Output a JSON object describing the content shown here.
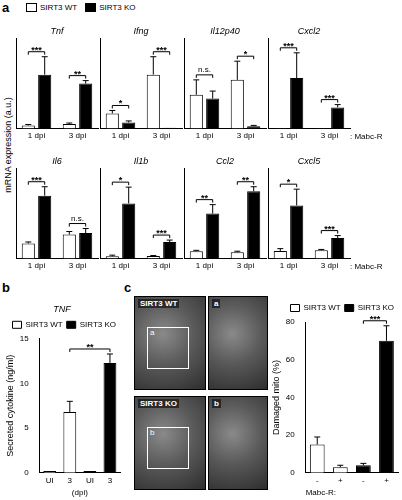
{
  "figure": {
    "panels": [
      "a",
      "b",
      "c"
    ],
    "ylabel": "mRNA expression (a.u.)",
    "images": [
      {
        "label": "SIRT3 WT",
        "inset": "a"
      },
      {
        "label": "SIRT3 KO",
        "inset": "b"
      }
    ]
  },
  "chart_data": [
    {
      "type": "bar",
      "title": "Tnf",
      "categories": [
        "1 dpi",
        "3 dpi"
      ],
      "ylim": [
        0,
        30
      ],
      "tick_labels": "x",
      "grid": false,
      "legend": "top-left",
      "series": [
        {
          "name": "SIRT3 WT",
          "color": "#ffffff",
          "values": [
            1,
            1.5
          ],
          "errors": [
            0.3,
            0.3
          ]
        },
        {
          "name": "SIRT3 KO",
          "color": "#000000",
          "values": [
            18,
            15
          ],
          "errors": [
            6,
            1
          ]
        }
      ],
      "significance": [
        {
          "from": [
            0,
            0
          ],
          "to": [
            1,
            0
          ],
          "label": "***"
        },
        {
          "from": [
            0,
            1
          ],
          "to": [
            1,
            1
          ],
          "label": "**"
        }
      ]
    },
    {
      "type": "bar",
      "title": "Ifng",
      "categories": [
        "1 dpi",
        "3 dpi"
      ],
      "ylim": [
        0,
        3
      ],
      "tick_labels": "x",
      "grid": false,
      "series": [
        {
          "name": "SIRT3 WT",
          "color": "#ffffff",
          "values": [
            0.5,
            1.8
          ],
          "errors": [
            0.1,
            0.6
          ]
        },
        {
          "name": "SIRT3 KO",
          "color": "#000000",
          "values": [
            0.2,
            0.02
          ],
          "errors": [
            0.05,
            null
          ]
        }
      ],
      "significance": [
        {
          "from": [
            0,
            0
          ],
          "to": [
            1,
            0
          ],
          "label": "*"
        },
        {
          "from": [
            0,
            1
          ],
          "to": [
            1,
            1
          ],
          "label": "***"
        }
      ]
    },
    {
      "type": "bar",
      "title": "Il12p40",
      "categories": [
        "1 dpi",
        "3 dpi"
      ],
      "ylim": [
        0,
        12
      ],
      "tick_labels": "x",
      "grid": false,
      "series": [
        {
          "name": "SIRT3 WT",
          "color": "#ffffff",
          "values": [
            4.5,
            6.5
          ],
          "errors": [
            2,
            2.5
          ]
        },
        {
          "name": "SIRT3 KO",
          "color": "#000000",
          "values": [
            4,
            0.3
          ],
          "errors": [
            1,
            0.1
          ]
        }
      ],
      "significance": [
        {
          "from": [
            0,
            0
          ],
          "to": [
            1,
            0
          ],
          "label": "n.s."
        },
        {
          "from": [
            0,
            1
          ],
          "to": [
            1,
            1
          ],
          "label": "*"
        }
      ]
    },
    {
      "type": "bar",
      "title": "Cxcl2",
      "categories": [
        "1 dpi",
        "3 dpi"
      ],
      "ylim": [
        0,
        3200
      ],
      "tick_labels": "x",
      "grid": false,
      "annotations": [
        ": Mabc-R"
      ],
      "series": [
        {
          "name": "SIRT3 WT",
          "color": "#ffffff",
          "values": [
            5,
            5
          ],
          "errors": [
            null,
            null
          ]
        },
        {
          "name": "SIRT3 KO",
          "color": "#000000",
          "values": [
            1800,
            750
          ],
          "errors": [
            900,
            100
          ]
        }
      ],
      "significance": [
        {
          "from": [
            0,
            0
          ],
          "to": [
            1,
            0
          ],
          "label": "***"
        },
        {
          "from": [
            0,
            1
          ],
          "to": [
            1,
            1
          ],
          "label": "***"
        }
      ]
    },
    {
      "type": "bar",
      "title": "Il6",
      "categories": [
        "1 dpi",
        "3 dpi"
      ],
      "ylim": [
        0,
        6
      ],
      "tick_labels": "x",
      "grid": false,
      "series": [
        {
          "name": "SIRT3 WT",
          "color": "#ffffff",
          "values": [
            1,
            1.6
          ],
          "errors": [
            0.1,
            0.2
          ]
        },
        {
          "name": "SIRT3 KO",
          "color": "#000000",
          "values": [
            4.2,
            1.7
          ],
          "errors": [
            0.6,
            0.3
          ]
        }
      ],
      "significance": [
        {
          "from": [
            0,
            0
          ],
          "to": [
            1,
            0
          ],
          "label": "***"
        },
        {
          "from": [
            0,
            1
          ],
          "to": [
            1,
            1
          ],
          "label": "n.s."
        }
      ]
    },
    {
      "type": "bar",
      "title": "Il1b",
      "categories": [
        "1 dpi",
        "3 dpi"
      ],
      "ylim": [
        0,
        22
      ],
      "tick_labels": "x",
      "grid": false,
      "series": [
        {
          "name": "SIRT3 WT",
          "color": "#ffffff",
          "values": [
            0.5,
            0.6
          ],
          "errors": [
            0.3,
            0.1
          ]
        },
        {
          "name": "SIRT3 KO",
          "color": "#000000",
          "values": [
            13.5,
            4
          ],
          "errors": [
            4,
            0.5
          ]
        }
      ],
      "significance": [
        {
          "from": [
            0,
            0
          ],
          "to": [
            1,
            0
          ],
          "label": "*"
        },
        {
          "from": [
            0,
            1
          ],
          "to": [
            1,
            1
          ],
          "label": "***"
        }
      ]
    },
    {
      "type": "bar",
      "title": "Ccl2",
      "categories": [
        "1 dpi",
        "3 dpi"
      ],
      "ylim": [
        0,
        10
      ],
      "tick_labels": "x",
      "grid": false,
      "series": [
        {
          "name": "SIRT3 WT",
          "color": "#ffffff",
          "values": [
            0.8,
            0.7
          ],
          "errors": [
            0.1,
            0.1
          ]
        },
        {
          "name": "SIRT3 KO",
          "color": "#000000",
          "values": [
            5,
            7.5
          ],
          "errors": [
            1,
            0.5
          ]
        }
      ],
      "significance": [
        {
          "from": [
            0,
            0
          ],
          "to": [
            1,
            0
          ],
          "label": "**"
        },
        {
          "from": [
            0,
            1
          ],
          "to": [
            1,
            1
          ],
          "label": "**"
        }
      ]
    },
    {
      "type": "bar",
      "title": "Cxcl5",
      "categories": [
        "1 dpi",
        "3 dpi"
      ],
      "ylim": [
        0,
        11
      ],
      "tick_labels": "x",
      "grid": false,
      "annotations": [
        ": Mabc-R"
      ],
      "series": [
        {
          "name": "SIRT3 WT",
          "color": "#ffffff",
          "values": [
            0.9,
            1
          ],
          "errors": [
            0.3,
            0.1
          ]
        },
        {
          "name": "SIRT3 KO",
          "color": "#000000",
          "values": [
            6.5,
            2.5
          ],
          "errors": [
            2,
            0.3
          ]
        }
      ],
      "significance": [
        {
          "from": [
            0,
            0
          ],
          "to": [
            1,
            0
          ],
          "label": "*"
        },
        {
          "from": [
            0,
            1
          ],
          "to": [
            1,
            1
          ],
          "label": "***"
        }
      ]
    },
    {
      "type": "bar",
      "title": "TNF",
      "ylabel": "Secreted cytokine (ng/ml)",
      "xlabel": "(dpi)",
      "categories": [
        "UI",
        "3",
        "UI",
        "3"
      ],
      "ylim": [
        0,
        15
      ],
      "yticks": [
        0,
        5,
        10,
        15
      ],
      "grid": false,
      "legend": "top-right",
      "series": [
        {
          "name": "SIRT3 WT",
          "color": "#ffffff",
          "values": [
            0.2,
            6.8,
            null,
            null
          ],
          "errors": [
            null,
            1.2,
            null,
            null
          ]
        },
        {
          "name": "SIRT3 KO",
          "color": "#000000",
          "values": [
            null,
            null,
            0.2,
            12.3
          ],
          "errors": [
            null,
            null,
            null,
            1
          ]
        }
      ],
      "significance": [
        {
          "from": [
            0,
            1
          ],
          "to": [
            1,
            3
          ],
          "label": "**"
        }
      ]
    },
    {
      "type": "bar",
      "ylabel": "Damaged mito (%)",
      "xlabel": "Mabc-R:",
      "categories": [
        "-",
        "+",
        "-",
        "+"
      ],
      "ylim": [
        0,
        80
      ],
      "yticks": [
        0,
        20,
        40,
        60,
        80
      ],
      "grid": false,
      "legend": "top-right",
      "series": [
        {
          "name": "SIRT3 WT",
          "color": "#ffffff",
          "values": [
            15,
            3,
            null,
            null
          ],
          "errors": [
            4,
            1,
            null,
            null
          ]
        },
        {
          "name": "SIRT3 KO",
          "color": "#000000",
          "values": [
            null,
            null,
            4,
            70
          ],
          "errors": [
            null,
            null,
            1,
            8
          ]
        }
      ],
      "significance": [
        {
          "from": [
            1,
            2
          ],
          "to": [
            1,
            3
          ],
          "label": "***"
        }
      ]
    }
  ]
}
